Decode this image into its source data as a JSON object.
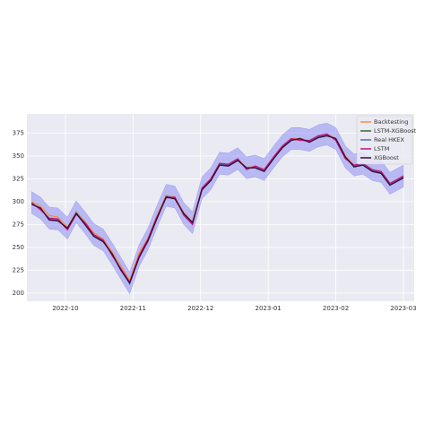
{
  "chart_data": {
    "type": "line",
    "x": [
      -0.5,
      -0.37,
      -0.24,
      -0.11,
      0.03,
      0.16,
      0.29,
      0.42,
      0.56,
      0.69,
      0.82,
      0.95,
      1.09,
      1.22,
      1.35,
      1.49,
      1.62,
      1.75,
      1.88,
      2.02,
      2.15,
      2.28,
      2.41,
      2.55,
      2.68,
      2.81,
      2.94,
      3.08,
      3.21,
      3.34,
      3.47,
      3.61,
      3.74,
      3.87,
      4.0,
      4.14,
      4.27,
      4.4,
      4.54,
      4.67,
      4.8,
      5.0
    ],
    "xlim": [
      -0.57,
      5.16
    ],
    "xticks": [
      {
        "value": 0,
        "label": "2022-10"
      },
      {
        "value": 1,
        "label": "2022-11"
      },
      {
        "value": 2,
        "label": "2022-12"
      },
      {
        "value": 3,
        "label": "2023-01"
      },
      {
        "value": 4,
        "label": "2023-02"
      },
      {
        "value": 5,
        "label": "2023-03"
      }
    ],
    "ylim": [
      191,
      396
    ],
    "yticks": [
      200,
      225,
      250,
      275,
      300,
      325,
      350,
      375
    ],
    "grid": true,
    "legend": "upper right",
    "band_color": "#6f6ff5",
    "band_upper": [
      311,
      305,
      294,
      293,
      283,
      301,
      289,
      276,
      270,
      255,
      239,
      223,
      253,
      271,
      295,
      319,
      317,
      299,
      289,
      327,
      337,
      354,
      353,
      359,
      349,
      351,
      347,
      361,
      373,
      381,
      381,
      379,
      384,
      386,
      381,
      361,
      352,
      354,
      347,
      345,
      332,
      340
    ],
    "band_lower": [
      287,
      281,
      270,
      269,
      259,
      277,
      265,
      252,
      246,
      231,
      215,
      199,
      229,
      247,
      271,
      295,
      293,
      275,
      265,
      303,
      313,
      330,
      329,
      335,
      325,
      327,
      323,
      337,
      349,
      357,
      357,
      355,
      360,
      362,
      357,
      337,
      328,
      330,
      323,
      321,
      308,
      316
    ],
    "series": [
      {
        "name": "Backtesting",
        "color": "#f28e3c",
        "values": [
          300,
          295,
          285,
          283,
          272,
          289,
          278,
          266,
          259,
          245,
          230,
          214,
          244,
          260,
          284,
          307,
          305,
          288,
          278,
          315,
          325,
          342,
          341,
          347,
          337,
          339,
          335,
          349,
          361,
          369,
          369,
          367,
          372,
          374,
          369,
          350,
          340,
          342,
          335,
          333,
          320,
          328
        ]
      },
      {
        "name": "LSTM-XGBoost",
        "color": "#2e6b2e",
        "values": [
          298,
          292,
          281,
          280,
          270,
          287,
          276,
          263,
          257,
          242,
          226,
          211,
          240,
          258,
          282,
          305,
          304,
          286,
          276,
          314,
          324,
          341,
          340,
          346,
          336,
          338,
          334,
          348,
          360,
          368,
          368,
          366,
          371,
          373,
          368,
          348,
          339,
          341,
          334,
          332,
          319,
          327
        ]
      },
      {
        "name": "Real HKEX",
        "color": "#4c72b0",
        "values": [
          298,
          292,
          281,
          280,
          270,
          288,
          276,
          263,
          257,
          242,
          226,
          210,
          240,
          258,
          282,
          306,
          304,
          286,
          276,
          314,
          324,
          341,
          340,
          346,
          336,
          338,
          334,
          348,
          360,
          368,
          368,
          366,
          371,
          373,
          368,
          348,
          339,
          341,
          334,
          332,
          319,
          327
        ]
      },
      {
        "name": "LSTM",
        "color": "#c2127e",
        "values": [
          299,
          291,
          282,
          281,
          269,
          286,
          277,
          264,
          258,
          241,
          227,
          212,
          241,
          259,
          283,
          304,
          305,
          285,
          275,
          315,
          325,
          342,
          341,
          347,
          335,
          339,
          335,
          349,
          361,
          369,
          367,
          367,
          372,
          374,
          367,
          347,
          340,
          342,
          335,
          333,
          320,
          328
        ]
      },
      {
        "name": "XGBoost",
        "color": "#3a0c3a",
        "values": [
          297,
          293,
          280,
          279,
          271,
          287,
          275,
          262,
          256,
          243,
          225,
          211,
          239,
          257,
          281,
          305,
          303,
          287,
          277,
          313,
          323,
          340,
          339,
          345,
          337,
          337,
          333,
          347,
          359,
          367,
          369,
          365,
          370,
          372,
          369,
          349,
          338,
          340,
          333,
          331,
          318,
          326
        ]
      }
    ]
  }
}
